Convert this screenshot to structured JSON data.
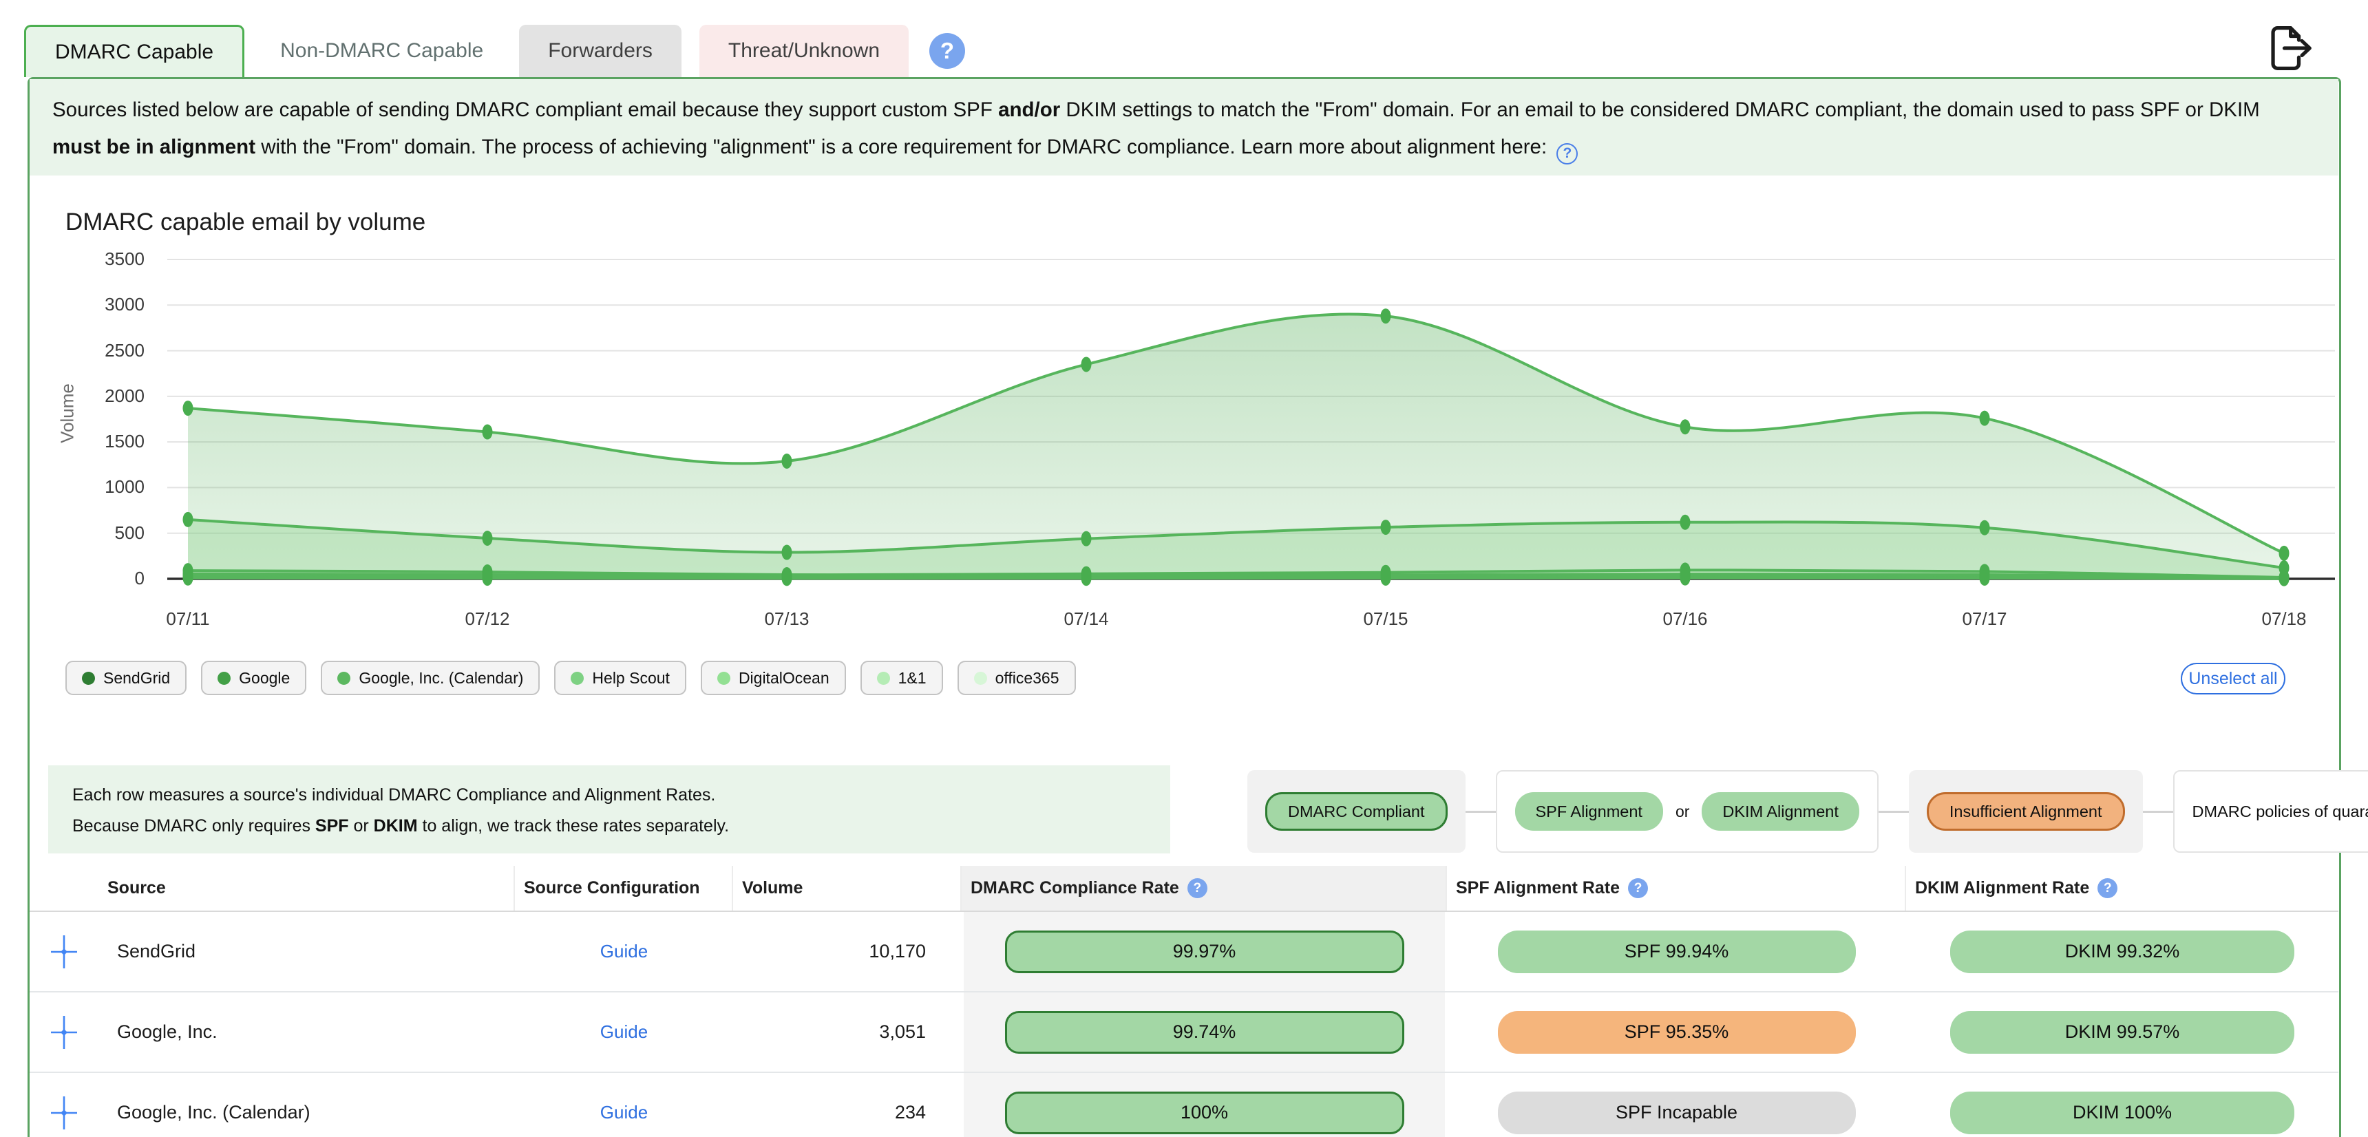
{
  "tabs": [
    {
      "label": "DMARC Capable",
      "state": "active"
    },
    {
      "label": "Non-DMARC Capable",
      "state": "plain"
    },
    {
      "label": "Forwarders",
      "state": "gray"
    },
    {
      "label": "Threat/Unknown",
      "state": "pink"
    }
  ],
  "help_icon_glyph": "?",
  "description": {
    "segments": [
      {
        "t": "Sources listed below are capable of sending DMARC compliant email because they support custom SPF "
      },
      {
        "t": "and/or",
        "b": true
      },
      {
        "t": " DKIM settings to match the \"From\" domain. For an email to be considered DMARC compliant, the domain used to pass SPF or DKIM "
      },
      {
        "t": "must be in alignment",
        "b": true
      },
      {
        "t": " with the \"From\" domain. The process of achieving \"alignment\" is a core requirement for DMARC compliance. Learn more about alignment here: "
      }
    ]
  },
  "chart_data": {
    "type": "area",
    "title": "DMARC capable email by volume",
    "xlabel": "",
    "ylabel": "Volume",
    "x": [
      "07/11",
      "07/12",
      "07/13",
      "07/14",
      "07/15",
      "07/16",
      "07/17",
      "07/18"
    ],
    "yticks": [
      0,
      500,
      1000,
      1500,
      2000,
      2500,
      3000,
      3500
    ],
    "ylim": [
      0,
      3500
    ],
    "grid": true,
    "legend_position": "bottom",
    "series": [
      {
        "name": "SendGrid",
        "dot_color": "#2e7d32",
        "values": [
          1870,
          1610,
          1290,
          2350,
          2880,
          1665,
          1760,
          280
        ]
      },
      {
        "name": "Google",
        "dot_color": "#43a047",
        "values": [
          650,
          445,
          290,
          440,
          565,
          620,
          560,
          120
        ]
      },
      {
        "name": "Google, Inc. (Calendar)",
        "dot_color": "#5cb860",
        "values": [
          90,
          75,
          45,
          55,
          70,
          95,
          80,
          15
        ]
      },
      {
        "name": "Help Scout",
        "dot_color": "#7ed183",
        "values": [
          55,
          45,
          30,
          35,
          42,
          52,
          45,
          8
        ]
      },
      {
        "name": "DigitalOcean",
        "dot_color": "#93e093",
        "values": [
          35,
          28,
          18,
          24,
          28,
          32,
          28,
          5
        ]
      },
      {
        "name": "1&1",
        "dot_color": "#b5ecb5",
        "values": [
          18,
          14,
          9,
          12,
          15,
          18,
          14,
          3
        ]
      },
      {
        "name": "office365",
        "dot_color": "#d7f6d7",
        "values": [
          9,
          7,
          5,
          6,
          8,
          10,
          8,
          2
        ]
      }
    ]
  },
  "unselect_all_label": "Unselect all",
  "table_note": {
    "line1_segments": [
      {
        "t": "Each row measures a source's individual DMARC Compliance and Alignment Rates."
      }
    ],
    "line2_segments": [
      {
        "t": "Because DMARC only requires "
      },
      {
        "t": "SPF",
        "b": true
      },
      {
        "t": " or "
      },
      {
        "t": "DKIM",
        "b": true
      },
      {
        "t": " to align, we track these rates separately."
      }
    ]
  },
  "rate_legend": {
    "dmarc_compliant": "DMARC Compliant",
    "spf_alignment": "SPF Alignment",
    "or_label": "or",
    "dkim_alignment": "DKIM Alignment",
    "insufficient": "Insufficient Alignment",
    "impact_note": "DMARC policies of quarantine or reject will impact this source"
  },
  "table": {
    "headers": {
      "source": "Source",
      "config": "Source Configuration",
      "volume": "Volume",
      "dmarc": "DMARC Compliance Rate",
      "spf": "SPF Alignment Rate",
      "dkim": "DKIM Alignment Rate"
    },
    "rows": [
      {
        "source": "SendGrid",
        "config": "Guide",
        "volume": "10,170",
        "dmarc": {
          "text": "99.97%",
          "variant": "green"
        },
        "spf": {
          "text": "SPF 99.94%",
          "variant": "green"
        },
        "dkim": {
          "text": "DKIM 99.32%",
          "variant": "green"
        }
      },
      {
        "source": "Google, Inc.",
        "config": "Guide",
        "volume": "3,051",
        "dmarc": {
          "text": "99.74%",
          "variant": "green"
        },
        "spf": {
          "text": "SPF 95.35%",
          "variant": "orange"
        },
        "dkim": {
          "text": "DKIM 99.57%",
          "variant": "green"
        }
      },
      {
        "source": "Google, Inc. (Calendar)",
        "config": "Guide",
        "volume": "234",
        "dmarc": {
          "text": "100%",
          "variant": "green"
        },
        "spf": {
          "text": "SPF Incapable",
          "variant": "gray"
        },
        "dkim": {
          "text": "DKIM 100%",
          "variant": "green"
        }
      }
    ]
  },
  "colors": {
    "accent_green": "#4caf50",
    "container_border": "#5aa361",
    "desc_bg": "#e9f4ea",
    "line_stroke": "#56b55c",
    "point_fill": "#48ad4e",
    "badge_green": "#a3d7a5",
    "badge_green_border": "#2e7d32",
    "badge_orange": "#f5b57c",
    "badge_orange_border": "#c06c2c",
    "badge_gray": "#dcdcdc",
    "link_blue": "#2e6fe0",
    "help_blue": "#7aa5ee"
  }
}
